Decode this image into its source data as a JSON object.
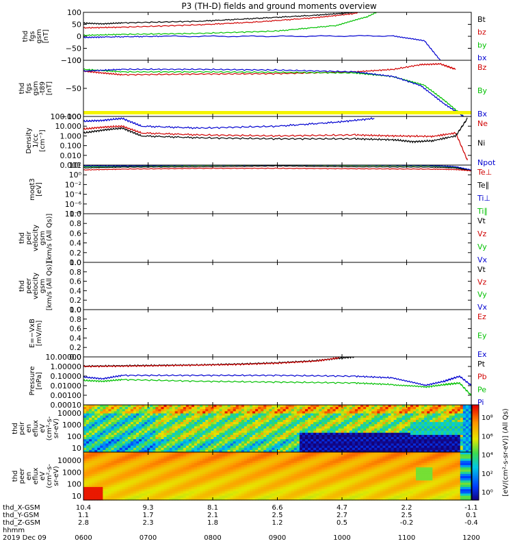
{
  "title": "P3 (TH-D) fields and ground moments overview",
  "chart_data": {
    "type": "line",
    "x_ticks": [
      "0600",
      "0700",
      "0800",
      "0900",
      "1000",
      "1100",
      "1200"
    ],
    "ephemeris": [
      {
        "label": "thd_X-GSM",
        "values": [
          "10.4",
          "9.3",
          "8.1",
          "6.6",
          "4.7",
          "2.2",
          "-1.1"
        ]
      },
      {
        "label": "thd_Y-GSM",
        "values": [
          "1.1",
          "1.7",
          "2.1",
          "2.5",
          "2.7",
          "2.5",
          "0.1"
        ]
      },
      {
        "label": "thd_Z-GSM",
        "values": [
          "2.8",
          "2.3",
          "1.8",
          "1.2",
          "0.5",
          "-0.2",
          "-0.4"
        ]
      },
      {
        "label": "hhmm",
        "values": []
      }
    ],
    "date_label": "2019 Dec 09",
    "panels": [
      {
        "id": "fgs",
        "ylabel": [
          "thd",
          "fgs",
          "gsm",
          "[nT]"
        ],
        "yticks": [
          "100",
          "50",
          "0",
          "−50",
          "−100"
        ],
        "ylim": [
          -100,
          100
        ],
        "scale": "linear",
        "legend": [
          {
            "name": "Bt",
            "color": "#000000"
          },
          {
            "name": "bz",
            "color": "#d00000"
          },
          {
            "name": "by",
            "color": "#00c000"
          },
          {
            "name": "bx",
            "color": "#0000d0"
          }
        ],
        "series": [
          {
            "color": "#000000",
            "x": [
              0,
              0.05,
              0.1,
              0.3,
              0.45,
              0.6,
              0.7,
              0.75,
              0.8
            ],
            "y": [
              55,
              52,
              56,
              63,
              75,
              88,
              100,
              120,
              150
            ]
          },
          {
            "color": "#d00000",
            "x": [
              0,
              0.1,
              0.3,
              0.45,
              0.6,
              0.7,
              0.78
            ],
            "y": [
              35,
              38,
              48,
              60,
              78,
              95,
              130
            ]
          },
          {
            "color": "#00c000",
            "x": [
              0,
              0.1,
              0.3,
              0.5,
              0.65,
              0.73,
              0.78
            ],
            "y": [
              4,
              8,
              12,
              22,
              45,
              80,
              120
            ]
          },
          {
            "color": "#0000d0",
            "x": [
              0,
              0.05,
              0.2,
              0.5,
              0.8,
              0.88,
              0.93
            ],
            "y": [
              -5,
              -3,
              0,
              0,
              2,
              -20,
              -120
            ]
          }
        ]
      },
      {
        "id": "fgs_minus_t89",
        "ylabel": [
          "thd",
          "fgs",
          "gsm",
          "-t89",
          "[nT]"
        ],
        "yticks": [
          "0",
          "−50",
          "−100"
        ],
        "ylim": [
          -125,
          30
        ],
        "scale": "linear",
        "legend": [
          {
            "name": "Bz",
            "color": "#d00000"
          },
          {
            "name": "By",
            "color": "#00c000"
          },
          {
            "name": "Bx",
            "color": "#0000d0"
          }
        ],
        "series": [
          {
            "color": "#d00000",
            "x": [
              0,
              0.05,
              0.1,
              0.3,
              0.5,
              0.7,
              0.8,
              0.87,
              0.92,
              0.96
            ],
            "y": [
              0,
              -5,
              -10,
              -8,
              -7,
              -2,
              5,
              18,
              20,
              5
            ]
          },
          {
            "color": "#00c000",
            "x": [
              0,
              0.1,
              0.3,
              0.5,
              0.7,
              0.8,
              0.88,
              0.93,
              0.98
            ],
            "y": [
              5,
              -2,
              -2,
              -3,
              -5,
              -15,
              -40,
              -80,
              -125
            ]
          },
          {
            "color": "#0000d0",
            "x": [
              0,
              0.1,
              0.3,
              0.5,
              0.7,
              0.8,
              0.87,
              0.93,
              0.98
            ],
            "y": [
              0,
              5,
              5,
              3,
              -2,
              -15,
              -40,
              -90,
              -125
            ]
          }
        ]
      },
      {
        "id": "density",
        "ylabel": [
          "Density",
          "1/cc",
          "[cm⁻³]"
        ],
        "yticks": [
          "100.000",
          "10.000",
          "1.000",
          "0.100",
          "0.010",
          "0.001"
        ],
        "ylim": [
          -3,
          2
        ],
        "scale": "log",
        "legend": [
          {
            "name": "Ne",
            "color": "#d00000"
          },
          {
            "name": "Ni",
            "color": "#000000"
          },
          {
            "name": "Npot",
            "color": "#0000d0"
          }
        ],
        "series": [
          {
            "color": "#d00000",
            "x": [
              0,
              0.05,
              0.1,
              0.15,
              0.3,
              0.5,
              0.7,
              0.8,
              0.9,
              0.96,
              0.99
            ],
            "y": [
              0.7,
              0.9,
              1.0,
              0.3,
              0.1,
              0.0,
              0.1,
              0.0,
              -0.05,
              0.3,
              -2.5
            ]
          },
          {
            "color": "#000000",
            "x": [
              0,
              0.05,
              0.1,
              0.15,
              0.3,
              0.5,
              0.7,
              0.8,
              0.85,
              0.9,
              0.96,
              0.99
            ],
            "y": [
              0.3,
              0.6,
              0.8,
              0.0,
              -0.2,
              -0.3,
              -0.3,
              -0.4,
              -0.6,
              -0.5,
              0.0,
              1.8
            ]
          },
          {
            "color": "#0000d0",
            "x": [
              0,
              0.05,
              0.1,
              0.15,
              0.3,
              0.5,
              0.65,
              0.75
            ],
            "y": [
              1.5,
              1.6,
              1.8,
              1.0,
              0.8,
              1.0,
              1.4,
              1.8
            ]
          }
        ]
      },
      {
        "id": "moqt3",
        "ylabel": [
          "moqt3",
          "[eV]"
        ],
        "yticks": [
          "10²",
          "10⁰",
          "10⁻²",
          "10⁻⁴",
          "10⁻⁶",
          "10⁻⁸"
        ],
        "ylim": [
          -9,
          3
        ],
        "scale": "log",
        "legend": [
          {
            "name": "Te⊥",
            "color": "#d00000"
          },
          {
            "name": "Te∥",
            "color": "#000000"
          },
          {
            "name": "Ti⊥",
            "color": "#0000d0"
          },
          {
            "name": "Ti∥",
            "color": "#00c000"
          }
        ],
        "series": [
          {
            "color": "#00c000",
            "x": [
              0,
              0.1,
              0.3,
              0.5,
              0.7,
              0.9,
              0.96,
              1.0
            ],
            "y": [
              2.6,
              2.7,
              2.9,
              3.0,
              2.9,
              2.8,
              2.5,
              1.6
            ]
          },
          {
            "color": "#0000d0",
            "x": [
              0,
              0.1,
              0.3,
              0.5,
              0.7,
              0.9,
              0.96,
              1.0
            ],
            "y": [
              2.8,
              2.8,
              3.0,
              3.0,
              3.0,
              2.9,
              2.6,
              1.8
            ]
          },
          {
            "color": "#000000",
            "x": [
              0,
              0.1,
              0.3,
              0.5,
              0.7,
              0.9,
              0.96,
              1.0
            ],
            "y": [
              2.3,
              2.5,
              2.6,
              2.8,
              2.6,
              2.5,
              2.3,
              1.6
            ]
          },
          {
            "color": "#d00000",
            "x": [
              0,
              0.1,
              0.3,
              0.5,
              0.7,
              0.9,
              0.96,
              1.0
            ],
            "y": [
              1.8,
              2.0,
              2.2,
              2.2,
              2.1,
              2.0,
              1.9,
              1.6
            ]
          }
        ]
      },
      {
        "id": "peir_velocity",
        "ylabel": [
          "thd",
          "peir",
          "velocity",
          "gsm",
          "[km/s (All Qs)]"
        ],
        "yticks": [
          "1.0",
          "0.8",
          "0.6",
          "0.4",
          "0.2",
          "0.0"
        ],
        "ylim": [
          0,
          1
        ],
        "scale": "linear",
        "legend": [
          {
            "name": "Vt",
            "color": "#000000"
          },
          {
            "name": "Vz",
            "color": "#d00000"
          },
          {
            "name": "Vy",
            "color": "#00c000"
          },
          {
            "name": "Vx",
            "color": "#0000d0"
          }
        ],
        "series": []
      },
      {
        "id": "peer_velocity",
        "ylabel": [
          "thd",
          "peer",
          "velocity",
          "gsm",
          "[km/s (All Qs)]"
        ],
        "yticks": [
          "1.0",
          "0.8",
          "0.6",
          "0.4",
          "0.2",
          "0.0"
        ],
        "ylim": [
          0,
          1
        ],
        "scale": "linear",
        "legend": [
          {
            "name": "Vt",
            "color": "#000000"
          },
          {
            "name": "Vz",
            "color": "#d00000"
          },
          {
            "name": "Vy",
            "color": "#00c000"
          },
          {
            "name": "Vx",
            "color": "#0000d0"
          }
        ],
        "series": []
      },
      {
        "id": "e_field",
        "ylabel": [
          "E=−VxB",
          "[mV/m]"
        ],
        "yticks": [
          "1.0",
          "0.8",
          "0.6",
          "0.4",
          "0.2",
          "0.0"
        ],
        "ylim": [
          0,
          1
        ],
        "scale": "linear",
        "legend": [
          {
            "name": "Ez",
            "color": "#d00000"
          },
          {
            "name": "Ey",
            "color": "#00c000"
          },
          {
            "name": "Ex",
            "color": "#0000d0"
          }
        ],
        "series": []
      },
      {
        "id": "pressure",
        "ylabel": [
          "Pressure",
          "[nPa]"
        ],
        "yticks": [
          "10.00000",
          "1.00000",
          "0.10000",
          "0.01000",
          "0.00100",
          "0.00010"
        ],
        "ylim": [
          -4.3,
          1.4
        ],
        "scale": "log",
        "legend": [
          {
            "name": "Pt",
            "color": "#000000"
          },
          {
            "name": "Pb",
            "color": "#d00000"
          },
          {
            "name": "Pe",
            "color": "#00c000"
          },
          {
            "name": "Pi",
            "color": "#0000d0"
          }
        ],
        "series": [
          {
            "color": "#000000",
            "x": [
              0,
              0.1,
              0.2,
              0.3,
              0.4,
              0.5,
              0.6,
              0.65,
              0.7
            ],
            "y": [
              0.3,
              0.35,
              0.4,
              0.45,
              0.55,
              0.7,
              0.95,
              1.2,
              1.4
            ]
          },
          {
            "color": "#d00000",
            "x": [
              0,
              0.1,
              0.2,
              0.3,
              0.4,
              0.5,
              0.6,
              0.66
            ],
            "y": [
              0.25,
              0.3,
              0.35,
              0.42,
              0.5,
              0.65,
              0.9,
              1.3
            ]
          },
          {
            "color": "#0000d0",
            "x": [
              0,
              0.05,
              0.1,
              0.3,
              0.5,
              0.7,
              0.8,
              0.88,
              0.93,
              0.97,
              1.0
            ],
            "y": [
              -1.0,
              -1.2,
              -0.8,
              -0.8,
              -0.8,
              -0.9,
              -1.1,
              -2.0,
              -1.5,
              -0.9,
              -2.0
            ]
          },
          {
            "color": "#00c000",
            "x": [
              0,
              0.05,
              0.1,
              0.3,
              0.5,
              0.7,
              0.8,
              0.88,
              0.93,
              0.97,
              1.0
            ],
            "y": [
              -1.4,
              -1.5,
              -1.3,
              -1.5,
              -1.6,
              -1.7,
              -1.9,
              -2.2,
              -1.9,
              -1.7,
              -3.2
            ]
          }
        ]
      },
      {
        "id": "peir_en_eflux",
        "type": "heatmap",
        "ylabel": [
          "thd",
          "peir",
          "en",
          "eflux",
          "eV",
          "(cm²-s-",
          "sr-eV)"
        ],
        "yticks": [
          "10000",
          "1000",
          "100",
          "10"
        ],
        "scale": "log"
      },
      {
        "id": "peer_en_eflux",
        "type": "heatmap",
        "ylabel": [
          "thd",
          "peer",
          "en",
          "eflux",
          "eV",
          "(cm²-s-",
          "sr-eV)"
        ],
        "yticks": [
          "10000",
          "1000",
          "100",
          "10"
        ],
        "scale": "log"
      }
    ],
    "colorbar": {
      "label": "[eV/(cm²-s-sr-eV)] (All Qs)",
      "ticks": [
        "10⁸",
        "10⁶",
        "10⁴",
        "10²",
        "10⁰"
      ]
    }
  }
}
